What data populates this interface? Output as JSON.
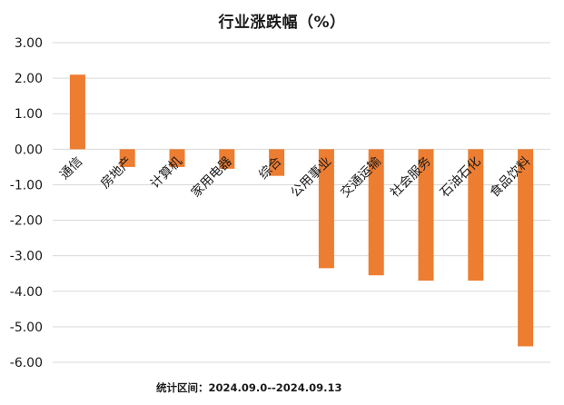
{
  "chart_data": {
    "type": "bar",
    "title": "行业涨跌幅（%）",
    "categories": [
      "通信",
      "房地产",
      "计算机",
      "家用电器",
      "综合",
      "公用事业",
      "交通运输",
      "社会服务",
      "石油石化",
      "食品饮料"
    ],
    "values": [
      2.1,
      -0.5,
      -0.5,
      -0.55,
      -0.75,
      -3.35,
      -3.55,
      -3.7,
      -3.7,
      -5.55
    ],
    "ylim": [
      -6.0,
      3.0
    ],
    "yticks": [
      "3.00",
      "2.00",
      "1.00",
      "0.00",
      "-1.00",
      "-2.00",
      "-3.00",
      "-4.00",
      "-5.00",
      "-6.00"
    ],
    "ytick_values": [
      3,
      2,
      1,
      0,
      -1,
      -2,
      -3,
      -4,
      -5,
      -6
    ],
    "grid": true,
    "bar_color": "#ED7D31",
    "grid_color": "#D9D9D9",
    "footer": "统计区间：2024.09.0--2024.09.13"
  }
}
